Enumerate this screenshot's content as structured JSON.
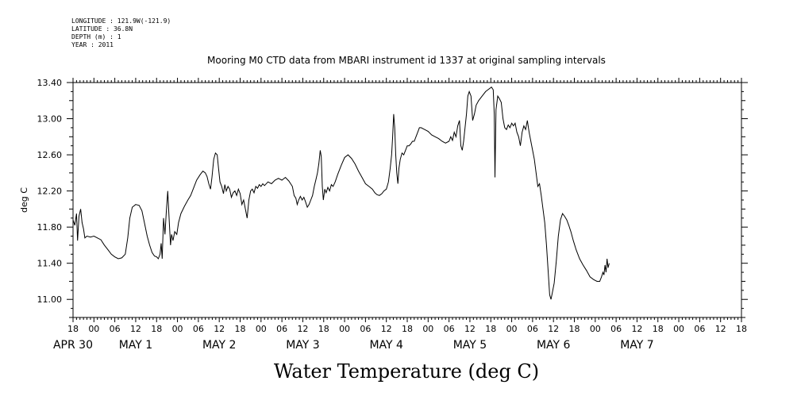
{
  "header": {
    "longitude": "LONGITUDE : 121.9W(-121.9)",
    "latitude": "LATITUDE : 36.8N",
    "depth": "DEPTH (m) : 1",
    "year": "YEAR : 2011"
  },
  "chart_data": {
    "type": "line",
    "title": "Mooring M0 CTD data from MBARI instrument id 1337 at original sampling intervals",
    "ylabel": "deg C",
    "xlabel": "Water Temperature (deg C)",
    "ylim": [
      10.8,
      13.4
    ],
    "yticks": [
      11.0,
      11.4,
      11.8,
      12.2,
      12.6,
      13.0,
      13.4
    ],
    "ytick_labels": [
      "11.00",
      "11.40",
      "11.80",
      "12.20",
      "12.60",
      "13.00",
      "13.40"
    ],
    "x_unit": "hours since 2011-04-30 00:00",
    "xlim": [
      18,
      210
    ],
    "xtick_labels": [
      "18",
      "00",
      "06",
      "12",
      "18",
      "00",
      "06",
      "12",
      "18",
      "00",
      "06",
      "12",
      "18",
      "00",
      "06",
      "12",
      "18",
      "00",
      "06",
      "12",
      "18",
      "00",
      "06",
      "12",
      "18",
      "00",
      "06",
      "12",
      "18",
      "00",
      "06",
      "12",
      "18"
    ],
    "day_labels": [
      {
        "label": "APR 30",
        "hour": 18
      },
      {
        "label": "MAY  1",
        "hour": 36
      },
      {
        "label": "MAY  2",
        "hour": 60
      },
      {
        "label": "MAY  3",
        "hour": 84
      },
      {
        "label": "MAY  4",
        "hour": 108
      },
      {
        "label": "MAY  5",
        "hour": 132
      },
      {
        "label": "MAY  6",
        "hour": 156
      },
      {
        "label": "MAY  7",
        "hour": 180
      }
    ],
    "grid": false,
    "series": [
      {
        "values": [
          [
            18.0,
            11.88
          ],
          [
            18.5,
            11.82
          ],
          [
            19.0,
            11.95
          ],
          [
            19.3,
            11.65
          ],
          [
            19.7,
            11.92
          ],
          [
            20.2,
            12.0
          ],
          [
            20.6,
            11.85
          ],
          [
            21.0,
            11.78
          ],
          [
            21.4,
            11.68
          ],
          [
            22.0,
            11.7
          ],
          [
            23.0,
            11.69
          ],
          [
            24.0,
            11.7
          ],
          [
            25.0,
            11.68
          ],
          [
            26.0,
            11.66
          ],
          [
            27.0,
            11.6
          ],
          [
            28.0,
            11.55
          ],
          [
            29.0,
            11.5
          ],
          [
            30.0,
            11.47
          ],
          [
            31.0,
            11.45
          ],
          [
            32.0,
            11.46
          ],
          [
            33.0,
            11.5
          ],
          [
            33.7,
            11.68
          ],
          [
            34.3,
            11.9
          ],
          [
            35.0,
            12.02
          ],
          [
            36.0,
            12.05
          ],
          [
            37.0,
            12.04
          ],
          [
            37.8,
            11.98
          ],
          [
            38.5,
            11.85
          ],
          [
            39.3,
            11.7
          ],
          [
            40.0,
            11.6
          ],
          [
            40.7,
            11.52
          ],
          [
            41.4,
            11.48
          ],
          [
            42.0,
            11.47
          ],
          [
            42.5,
            11.45
          ],
          [
            43.0,
            11.5
          ],
          [
            43.3,
            11.62
          ],
          [
            43.6,
            11.45
          ],
          [
            44.0,
            11.9
          ],
          [
            44.4,
            11.72
          ],
          [
            44.8,
            11.97
          ],
          [
            45.2,
            12.2
          ],
          [
            45.6,
            11.9
          ],
          [
            46.0,
            11.6
          ],
          [
            46.3,
            11.72
          ],
          [
            46.7,
            11.65
          ],
          [
            47.2,
            11.75
          ],
          [
            47.8,
            11.72
          ],
          [
            48.3,
            11.85
          ],
          [
            49.0,
            11.95
          ],
          [
            50.0,
            12.03
          ],
          [
            51.0,
            12.1
          ],
          [
            51.8,
            12.15
          ],
          [
            52.5,
            12.22
          ],
          [
            53.5,
            12.32
          ],
          [
            54.5,
            12.38
          ],
          [
            55.3,
            12.42
          ],
          [
            56.0,
            12.4
          ],
          [
            56.5,
            12.36
          ],
          [
            57.0,
            12.28
          ],
          [
            57.5,
            12.22
          ],
          [
            57.9,
            12.35
          ],
          [
            58.4,
            12.55
          ],
          [
            58.9,
            12.62
          ],
          [
            59.4,
            12.6
          ],
          [
            59.8,
            12.45
          ],
          [
            60.2,
            12.3
          ],
          [
            60.7,
            12.25
          ],
          [
            61.2,
            12.17
          ],
          [
            61.6,
            12.27
          ],
          [
            62.0,
            12.2
          ],
          [
            62.5,
            12.25
          ],
          [
            63.0,
            12.22
          ],
          [
            63.5,
            12.13
          ],
          [
            64.0,
            12.18
          ],
          [
            64.5,
            12.2
          ],
          [
            65.0,
            12.15
          ],
          [
            65.5,
            12.22
          ],
          [
            66.0,
            12.17
          ],
          [
            66.5,
            12.05
          ],
          [
            67.0,
            12.1
          ],
          [
            67.5,
            12.0
          ],
          [
            68.0,
            11.9
          ],
          [
            68.5,
            12.1
          ],
          [
            69.0,
            12.2
          ],
          [
            69.5,
            12.22
          ],
          [
            70.0,
            12.18
          ],
          [
            70.5,
            12.25
          ],
          [
            71.0,
            12.23
          ],
          [
            71.5,
            12.27
          ],
          [
            72.0,
            12.25
          ],
          [
            72.5,
            12.28
          ],
          [
            73.0,
            12.26
          ],
          [
            74.0,
            12.3
          ],
          [
            75.0,
            12.28
          ],
          [
            76.0,
            12.32
          ],
          [
            77.0,
            12.34
          ],
          [
            78.0,
            12.32
          ],
          [
            79.0,
            12.35
          ],
          [
            80.0,
            12.31
          ],
          [
            80.5,
            12.28
          ],
          [
            81.0,
            12.25
          ],
          [
            81.5,
            12.15
          ],
          [
            82.0,
            12.12
          ],
          [
            82.4,
            12.05
          ],
          [
            82.8,
            12.1
          ],
          [
            83.3,
            12.14
          ],
          [
            83.8,
            12.1
          ],
          [
            84.3,
            12.13
          ],
          [
            84.8,
            12.08
          ],
          [
            85.3,
            12.02
          ],
          [
            85.8,
            12.05
          ],
          [
            86.3,
            12.1
          ],
          [
            86.8,
            12.15
          ],
          [
            87.3,
            12.25
          ],
          [
            87.8,
            12.33
          ],
          [
            88.2,
            12.4
          ],
          [
            88.6,
            12.5
          ],
          [
            89.0,
            12.65
          ],
          [
            89.3,
            12.58
          ],
          [
            89.6,
            12.25
          ],
          [
            89.9,
            12.1
          ],
          [
            90.3,
            12.22
          ],
          [
            90.7,
            12.18
          ],
          [
            91.2,
            12.24
          ],
          [
            91.7,
            12.2
          ],
          [
            92.2,
            12.27
          ],
          [
            92.7,
            12.25
          ],
          [
            93.3,
            12.3
          ],
          [
            94.0,
            12.38
          ],
          [
            95.0,
            12.48
          ],
          [
            96.0,
            12.57
          ],
          [
            97.0,
            12.6
          ],
          [
            98.0,
            12.56
          ],
          [
            99.0,
            12.5
          ],
          [
            100.0,
            12.42
          ],
          [
            101.0,
            12.35
          ],
          [
            102.0,
            12.28
          ],
          [
            103.0,
            12.25
          ],
          [
            104.0,
            12.22
          ],
          [
            104.7,
            12.18
          ],
          [
            105.3,
            12.16
          ],
          [
            106.0,
            12.15
          ],
          [
            106.7,
            12.17
          ],
          [
            107.3,
            12.2
          ],
          [
            108.0,
            12.22
          ],
          [
            108.6,
            12.3
          ],
          [
            109.1,
            12.45
          ],
          [
            109.5,
            12.6
          ],
          [
            109.8,
            12.8
          ],
          [
            110.1,
            13.05
          ],
          [
            110.4,
            12.9
          ],
          [
            110.7,
            12.6
          ],
          [
            111.0,
            12.4
          ],
          [
            111.3,
            12.28
          ],
          [
            111.6,
            12.45
          ],
          [
            112.0,
            12.55
          ],
          [
            112.5,
            12.62
          ],
          [
            113.0,
            12.6
          ],
          [
            113.5,
            12.65
          ],
          [
            114.0,
            12.7
          ],
          [
            114.5,
            12.7
          ],
          [
            115.0,
            12.72
          ],
          [
            115.5,
            12.75
          ],
          [
            116.0,
            12.75
          ],
          [
            116.5,
            12.8
          ],
          [
            117.0,
            12.85
          ],
          [
            117.5,
            12.9
          ],
          [
            118.0,
            12.9
          ],
          [
            119.0,
            12.88
          ],
          [
            120.0,
            12.86
          ],
          [
            121.0,
            12.82
          ],
          [
            122.0,
            12.8
          ],
          [
            123.0,
            12.78
          ],
          [
            124.0,
            12.75
          ],
          [
            125.0,
            12.73
          ],
          [
            126.0,
            12.75
          ],
          [
            126.5,
            12.8
          ],
          [
            127.0,
            12.76
          ],
          [
            127.5,
            12.85
          ],
          [
            128.0,
            12.8
          ],
          [
            128.5,
            12.92
          ],
          [
            129.0,
            12.98
          ],
          [
            129.4,
            12.7
          ],
          [
            129.8,
            12.65
          ],
          [
            130.2,
            12.75
          ],
          [
            130.6,
            12.9
          ],
          [
            131.0,
            13.05
          ],
          [
            131.4,
            13.25
          ],
          [
            131.8,
            13.3
          ],
          [
            132.3,
            13.25
          ],
          [
            132.8,
            12.98
          ],
          [
            133.3,
            13.05
          ],
          [
            133.8,
            13.15
          ],
          [
            134.5,
            13.2
          ],
          [
            135.5,
            13.25
          ],
          [
            136.5,
            13.3
          ],
          [
            137.5,
            13.33
          ],
          [
            138.2,
            13.35
          ],
          [
            138.7,
            13.32
          ],
          [
            139.0,
            13.05
          ],
          [
            139.2,
            12.35
          ],
          [
            139.5,
            13.1
          ],
          [
            140.0,
            13.25
          ],
          [
            140.5,
            13.22
          ],
          [
            141.0,
            13.18
          ],
          [
            141.5,
            13.0
          ],
          [
            142.0,
            12.9
          ],
          [
            142.5,
            12.88
          ],
          [
            143.0,
            12.93
          ],
          [
            143.5,
            12.9
          ],
          [
            144.0,
            12.95
          ],
          [
            144.5,
            12.92
          ],
          [
            145.0,
            12.95
          ],
          [
            145.5,
            12.85
          ],
          [
            146.0,
            12.8
          ],
          [
            146.5,
            12.7
          ],
          [
            147.0,
            12.85
          ],
          [
            147.5,
            12.92
          ],
          [
            148.0,
            12.88
          ],
          [
            148.5,
            12.98
          ],
          [
            149.0,
            12.85
          ],
          [
            149.5,
            12.75
          ],
          [
            150.0,
            12.65
          ],
          [
            150.5,
            12.55
          ],
          [
            151.0,
            12.4
          ],
          [
            151.5,
            12.25
          ],
          [
            152.0,
            12.28
          ],
          [
            152.5,
            12.15
          ],
          [
            153.0,
            12.0
          ],
          [
            153.5,
            11.85
          ],
          [
            154.0,
            11.6
          ],
          [
            154.5,
            11.3
          ],
          [
            154.9,
            11.05
          ],
          [
            155.3,
            11.0
          ],
          [
            155.7,
            11.08
          ],
          [
            156.2,
            11.18
          ],
          [
            156.8,
            11.42
          ],
          [
            157.4,
            11.7
          ],
          [
            158.0,
            11.88
          ],
          [
            158.6,
            11.95
          ],
          [
            159.2,
            11.92
          ],
          [
            159.8,
            11.88
          ],
          [
            160.4,
            11.82
          ],
          [
            161.0,
            11.75
          ],
          [
            161.7,
            11.65
          ],
          [
            162.5,
            11.55
          ],
          [
            163.5,
            11.45
          ],
          [
            164.5,
            11.38
          ],
          [
            165.5,
            11.32
          ],
          [
            166.5,
            11.25
          ],
          [
            167.5,
            11.22
          ],
          [
            168.5,
            11.2
          ],
          [
            169.3,
            11.2
          ],
          [
            169.8,
            11.25
          ],
          [
            170.2,
            11.3
          ],
          [
            170.5,
            11.27
          ],
          [
            170.8,
            11.38
          ],
          [
            171.1,
            11.3
          ],
          [
            171.4,
            11.45
          ],
          [
            171.7,
            11.35
          ],
          [
            172.0,
            11.4
          ]
        ]
      }
    ]
  }
}
